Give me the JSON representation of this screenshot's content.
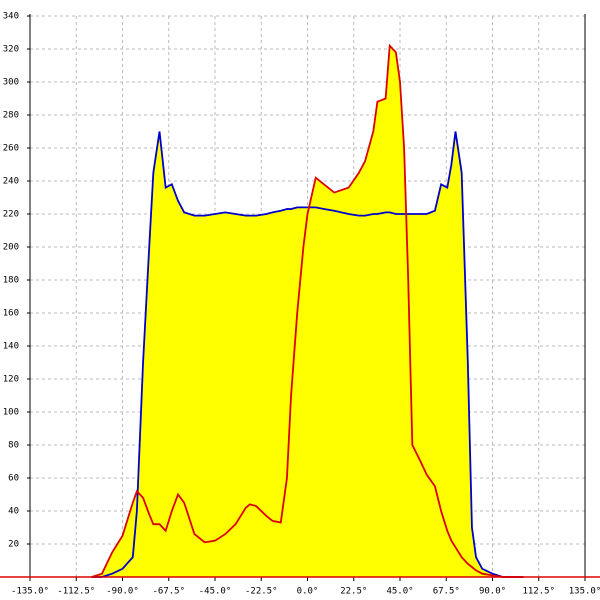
{
  "chart_data": {
    "type": "area-line",
    "x": [
      -105,
      -100,
      -95,
      -90,
      -85,
      -83,
      -80,
      -77,
      -75,
      -72,
      -69,
      -66,
      -63,
      -60,
      -55,
      -50,
      -45,
      -40,
      -35,
      -30,
      -28,
      -25,
      -20,
      -17,
      -13,
      -10,
      -8,
      -5,
      -2,
      0,
      4,
      8,
      13,
      20,
      25,
      28,
      32,
      34,
      38,
      40,
      43,
      45,
      47,
      49,
      51,
      55,
      58,
      62,
      65,
      68,
      70,
      72,
      75,
      78,
      80,
      82,
      85,
      90,
      95,
      100,
      105
    ],
    "series": [
      {
        "color": "#0000cc",
        "values": [
          0,
          0,
          2,
          5,
          12,
          40,
          130,
          200,
          245,
          270,
          236,
          238,
          228,
          221,
          219,
          219,
          220,
          221,
          220,
          219,
          219,
          219,
          220,
          221,
          222,
          223,
          223,
          224,
          224,
          224,
          224,
          223,
          222,
          220,
          219,
          219,
          220,
          220,
          221,
          221,
          220,
          220,
          220,
          220,
          220,
          220,
          220,
          222,
          238,
          236,
          250,
          270,
          245,
          130,
          30,
          12,
          5,
          2,
          0,
          0,
          0
        ]
      },
      {
        "color": "#dd0000",
        "values": [
          0,
          2,
          15,
          25,
          45,
          52,
          48,
          38,
          32,
          32,
          28,
          40,
          50,
          45,
          26,
          21,
          22,
          26,
          32,
          42,
          44,
          43,
          37,
          34,
          33,
          60,
          110,
          160,
          200,
          220,
          242,
          238,
          233,
          236,
          245,
          252,
          270,
          288,
          290,
          322,
          318,
          300,
          260,
          180,
          80,
          70,
          62,
          55,
          40,
          28,
          22,
          18,
          12,
          8,
          6,
          4,
          2,
          1,
          0,
          0,
          0
        ]
      }
    ],
    "fill_color": "#ffff00",
    "xlim": [
      -135,
      135
    ],
    "xticks": [
      {
        "value": -135,
        "label": "-135.0°"
      },
      {
        "value": -112.5,
        "label": "-112.5°"
      },
      {
        "value": -90,
        "label": "-90.0°"
      },
      {
        "value": -67.5,
        "label": "-67.5°"
      },
      {
        "value": -45,
        "label": "-45.0°"
      },
      {
        "value": -22.5,
        "label": "-22.5°"
      },
      {
        "value": 0,
        "label": "0.0°"
      },
      {
        "value": 22.5,
        "label": "22.5°"
      },
      {
        "value": 45,
        "label": "45.0°"
      },
      {
        "value": 67.5,
        "label": "67.5°"
      },
      {
        "value": 90,
        "label": "90.0°"
      },
      {
        "value": 112.5,
        "label": "112.5°"
      },
      {
        "value": 135,
        "label": "135.0°"
      }
    ],
    "ylim": [
      0,
      340
    ],
    "yticks": [
      20,
      40,
      60,
      80,
      100,
      120,
      140,
      160,
      180,
      200,
      220,
      240,
      260,
      280,
      300,
      320,
      340
    ],
    "grid": true
  }
}
